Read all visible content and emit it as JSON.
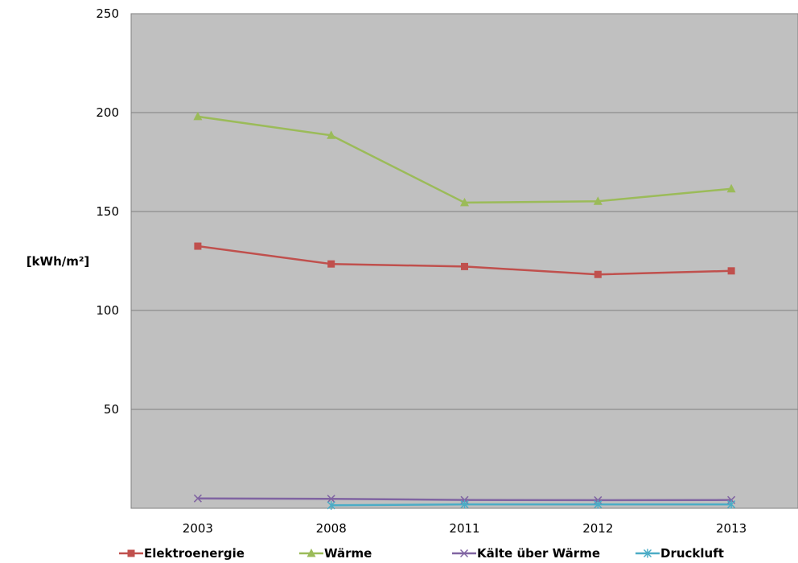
{
  "chart_data": {
    "type": "line",
    "categories": [
      "2003",
      "2008",
      "2011",
      "2012",
      "2013"
    ],
    "ylabel": "[kWh/m²]",
    "ylim": [
      0,
      250
    ],
    "y_ticks": [
      "250",
      "200",
      "150",
      "100",
      "50"
    ],
    "grid": true,
    "legend_position": "bottom",
    "plot_background": "#c0c0c0",
    "series": [
      {
        "name": "Elektroenergie",
        "color": "#c0504d",
        "marker": "square",
        "values": [
          132.5,
          123.5,
          122.2,
          118.2,
          120
        ]
      },
      {
        "name": "Wärme",
        "color": "#9bbb59",
        "marker": "triangle",
        "values": [
          198,
          188.5,
          154.5,
          155.2,
          161.5
        ]
      },
      {
        "name": "Kälte über Wärme",
        "color": "#8064a2",
        "marker": "x",
        "values": [
          5,
          4.8,
          4.2,
          4.1,
          4.2
        ]
      },
      {
        "name": "Druckluft",
        "color": "#4bacc6",
        "marker": "asterisk",
        "values": [
          null,
          1.5,
          2,
          2,
          2
        ]
      }
    ]
  }
}
